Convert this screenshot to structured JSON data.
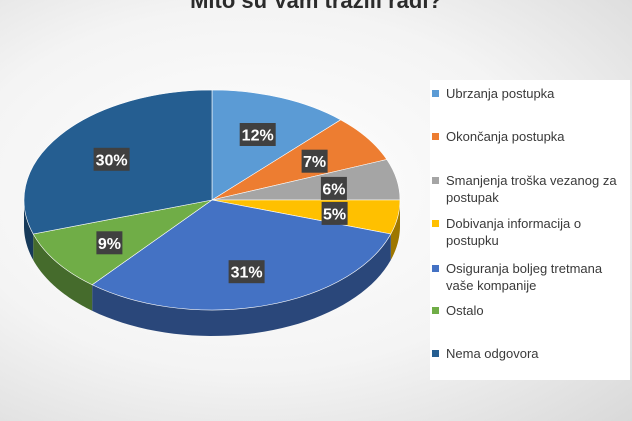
{
  "chart_data": {
    "type": "pie",
    "title": "Mito su Vam tražili radi?",
    "categories": [
      "Ubrzanja postupka",
      "Okončanja postupka",
      "Smanjenja troška vezanog za postupak",
      "Dobivanja informacija o postupku",
      "Osiguranja boljeg tretmana vaše kompanije",
      "Ostalo",
      "Nema odgovora"
    ],
    "values": [
      12,
      7,
      6,
      5,
      31,
      9,
      30
    ],
    "data_labels": [
      "12%",
      "7%",
      "6%",
      "5%",
      "31%",
      "9%",
      "30%"
    ],
    "colors": [
      "#5B9BD5",
      "#ED7D31",
      "#A5A5A5",
      "#FFC000",
      "#4472C4",
      "#70AD47",
      "#255E91"
    ],
    "legend_position": "right",
    "style": "3d"
  }
}
